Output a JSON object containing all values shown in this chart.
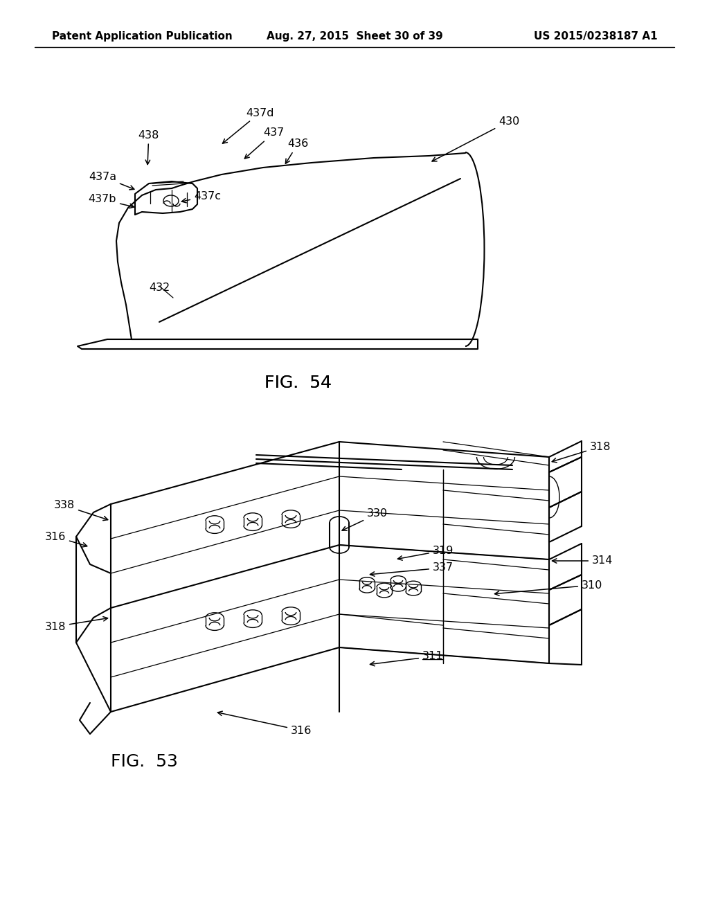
{
  "background_color": "#ffffff",
  "header_left": "Patent Application Publication",
  "header_center": "Aug. 27, 2015  Sheet 30 of 39",
  "header_right": "US 2015/0238187 A1",
  "header_fontsize": 11,
  "fig54_label": "FIG.  54",
  "fig53_label": "FIG.  53",
  "line_color": "#000000",
  "line_width": 1.5,
  "annotation_fontsize": 11.5
}
